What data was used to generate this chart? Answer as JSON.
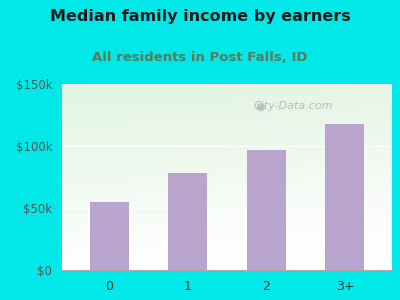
{
  "title": "Median family income by earners",
  "subtitle": "All residents in Post Falls, ID",
  "categories": [
    "0",
    "1",
    "2",
    "3+"
  ],
  "values": [
    55000,
    78000,
    97000,
    118000
  ],
  "bar_color": "#b8a4cc",
  "title_fontsize": 11.5,
  "subtitle_fontsize": 9.5,
  "subtitle_color": "#5a7a5a",
  "title_color": "#1a1a1a",
  "background_outer": "#00e8e8",
  "ylim": [
    0,
    150000
  ],
  "yticks": [
    0,
    50000,
    100000,
    150000
  ],
  "ytick_labels": [
    "$0",
    "$50k",
    "$100k",
    "$150k"
  ],
  "watermark": "City-Data.com"
}
